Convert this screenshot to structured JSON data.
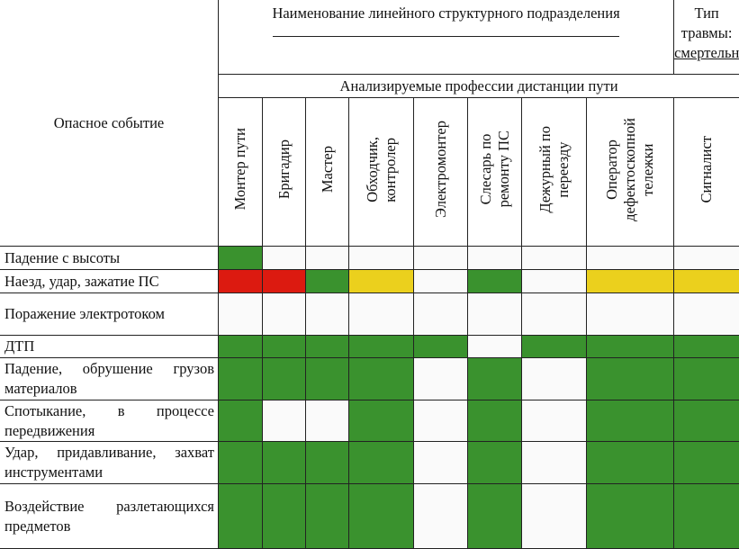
{
  "header": {
    "unit_title": "Наименование линейного структурного подразделения",
    "injury_type_label": "Тип травмы:",
    "injury_type_value": "смертельная",
    "professions_title": "Анализируемые профессии дистанции пути",
    "event_column": "Опасное событие"
  },
  "professions": [
    "Монтер пути",
    "Бригадир",
    "Мастер",
    "Обходчик,\nконтролер",
    "Электромонтер",
    "Слесарь по\nремонту ПС",
    "Дежурный по\nпереезду",
    "Оператор\nдефектоскопной\nтележки",
    "Сигналист"
  ],
  "legend_colors": {
    "G": "#3a922e",
    "R": "#dc1a10",
    "Y": "#ebd01d",
    "W": "#fafafa"
  },
  "rows": [
    {
      "event": "Падение с высоты",
      "cells": [
        "G",
        "W",
        "W",
        "W",
        "W",
        "W",
        "W",
        "W",
        "W"
      ]
    },
    {
      "event": "Наезд, удар, зажатие ПС",
      "cells": [
        "R",
        "R",
        "G",
        "Y",
        "W",
        "G",
        "W",
        "Y",
        "Y"
      ]
    },
    {
      "event": "Поражение электротоком",
      "cells": [
        "W",
        "W",
        "W",
        "W",
        "W",
        "W",
        "W",
        "W",
        "W"
      ]
    },
    {
      "event": "ДТП",
      "cells": [
        "G",
        "G",
        "G",
        "G",
        "G",
        "W",
        "G",
        "G",
        "G"
      ]
    },
    {
      "event": "Падение, обрушение грузов материалов",
      "cells": [
        "G",
        "G",
        "G",
        "G",
        "W",
        "G",
        "W",
        "G",
        "G"
      ]
    },
    {
      "event": "Спотыкание, в процессе передвижения",
      "cells": [
        "G",
        "W",
        "W",
        "G",
        "W",
        "G",
        "W",
        "G",
        "G"
      ]
    },
    {
      "event": "Удар, придавливание, захват инструментами",
      "cells": [
        "G",
        "G",
        "G",
        "G",
        "W",
        "G",
        "W",
        "G",
        "G"
      ]
    },
    {
      "event": "Воздействие разлетающихся предметов",
      "cells": [
        "G",
        "G",
        "G",
        "G",
        "W",
        "G",
        "W",
        "G",
        "G"
      ]
    }
  ]
}
